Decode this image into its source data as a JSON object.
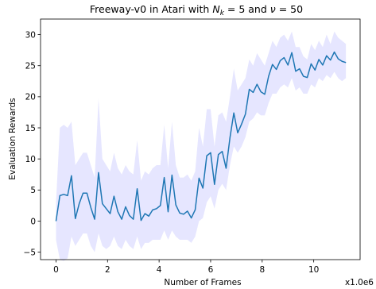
{
  "chart_data": {
    "type": "line",
    "title": "Freeway-v0 in Atari with $N_k = 5$ and $\\nu = 50$",
    "title_parts": {
      "prefix": "Freeway-v0 in Atari with ",
      "nk_symbol": "N",
      "nk_sub": "k",
      "nk_value": " = 5 and ",
      "nu_symbol": "ν",
      "nu_value": " = 50"
    },
    "xlabel": "Number of Frames",
    "ylabel": "Evaluation Rewards",
    "x_offset_label": "x1.0e6",
    "xlim": [
      -0.6,
      11.8
    ],
    "ylim": [
      -6.2,
      32.5
    ],
    "xticks": [
      0,
      2,
      4,
      6,
      8,
      10
    ],
    "xtick_labels": [
      "0",
      "2",
      "4",
      "6",
      "8",
      "10"
    ],
    "yticks": [
      -5,
      0,
      5,
      10,
      15,
      20,
      25,
      30
    ],
    "ytick_labels": [
      "−5",
      "0",
      "5",
      "10",
      "15",
      "20",
      "25",
      "30"
    ],
    "grid": false,
    "line_color": "#1f77b4",
    "band_color": "#e6e6ff",
    "series": [
      {
        "x": [
          0.0,
          0.15,
          0.3,
          0.45,
          0.6,
          0.75,
          0.9,
          1.05,
          1.2,
          1.35,
          1.5,
          1.65,
          1.8,
          1.95,
          2.1,
          2.25,
          2.4,
          2.55,
          2.7,
          2.85,
          3.0,
          3.15,
          3.3,
          3.45,
          3.6,
          3.75,
          3.9,
          4.05,
          4.2,
          4.35,
          4.5,
          4.65,
          4.8,
          4.95,
          5.1,
          5.25,
          5.4,
          5.55,
          5.7,
          5.85,
          6.0,
          6.15,
          6.3,
          6.45,
          6.6,
          6.75,
          6.9,
          7.05,
          7.2,
          7.35,
          7.5,
          7.65,
          7.8,
          7.95,
          8.1,
          8.25,
          8.4,
          8.55,
          8.7,
          8.85,
          9.0,
          9.15,
          9.3,
          9.45,
          9.6,
          9.75,
          9.9,
          10.05,
          10.2,
          10.35,
          10.5,
          10.65,
          10.8,
          10.95,
          11.1,
          11.25
        ],
        "y": [
          0.0,
          4.1,
          4.3,
          4.1,
          7.3,
          0.4,
          2.8,
          4.5,
          4.5,
          2.2,
          0.3,
          7.8,
          2.8,
          2.0,
          1.2,
          4.0,
          1.5,
          0.3,
          2.3,
          0.9,
          0.3,
          5.2,
          0.1,
          1.2,
          0.8,
          1.8,
          2.0,
          2.5,
          7.0,
          1.5,
          7.4,
          2.6,
          1.3,
          1.1,
          1.6,
          0.5,
          1.8,
          6.9,
          5.3,
          10.5,
          11.0,
          5.9,
          10.7,
          11.2,
          8.5,
          13.4,
          17.4,
          14.2,
          15.6,
          17.2,
          21.2,
          20.7,
          22.0,
          20.8,
          20.4,
          23.3,
          25.2,
          24.4,
          25.8,
          26.3,
          25.1,
          27.1,
          24.1,
          24.5,
          23.3,
          23.1,
          25.3,
          24.3,
          26.0,
          25.1,
          26.6,
          25.9,
          27.2,
          26.1,
          25.7,
          25.5
        ],
        "lower": [
          -3.0,
          -6.2,
          -6.4,
          -6.0,
          -2.5,
          -4.0,
          -3.0,
          -2.0,
          -2.0,
          -4.0,
          -5.0,
          -2.0,
          -4.0,
          -4.5,
          -4.0,
          -2.5,
          -4.0,
          -4.5,
          -3.0,
          -4.0,
          -4.5,
          -2.5,
          -4.5,
          -3.5,
          -3.5,
          -3.0,
          -3.0,
          -3.0,
          -1.5,
          -3.0,
          -1.5,
          -2.5,
          -3.0,
          -3.0,
          -3.0,
          -3.5,
          -2.5,
          0.0,
          0.5,
          3.0,
          4.0,
          2.0,
          5.0,
          6.0,
          5.0,
          9.0,
          12.0,
          11.0,
          12.0,
          13.5,
          16.0,
          16.5,
          17.5,
          17.0,
          17.0,
          19.0,
          20.5,
          20.5,
          21.5,
          22.0,
          21.5,
          23.0,
          21.0,
          21.5,
          20.5,
          20.5,
          22.0,
          21.5,
          23.0,
          22.5,
          23.5,
          23.0,
          24.0,
          23.0,
          22.5,
          23.0
        ],
        "upper": [
          3.0,
          15.0,
          15.5,
          15.0,
          16.0,
          9.0,
          10.0,
          11.0,
          11.0,
          9.0,
          7.0,
          19.7,
          10.0,
          9.0,
          8.0,
          11.0,
          8.5,
          7.5,
          9.0,
          8.0,
          7.5,
          13.0,
          6.5,
          8.0,
          7.5,
          8.5,
          9.0,
          9.0,
          15.5,
          8.5,
          16.0,
          9.0,
          7.0,
          7.0,
          7.5,
          6.5,
          8.0,
          15.0,
          12.0,
          18.0,
          18.0,
          12.0,
          17.0,
          17.5,
          16.0,
          20.0,
          24.5,
          21.0,
          22.0,
          23.0,
          26.0,
          25.0,
          27.0,
          26.0,
          25.0,
          27.0,
          29.0,
          28.0,
          29.5,
          30.0,
          29.0,
          30.5,
          28.0,
          28.0,
          26.5,
          26.0,
          28.5,
          27.5,
          29.0,
          28.0,
          30.0,
          28.5,
          30.5,
          29.5,
          29.0,
          28.5
        ]
      }
    ]
  }
}
